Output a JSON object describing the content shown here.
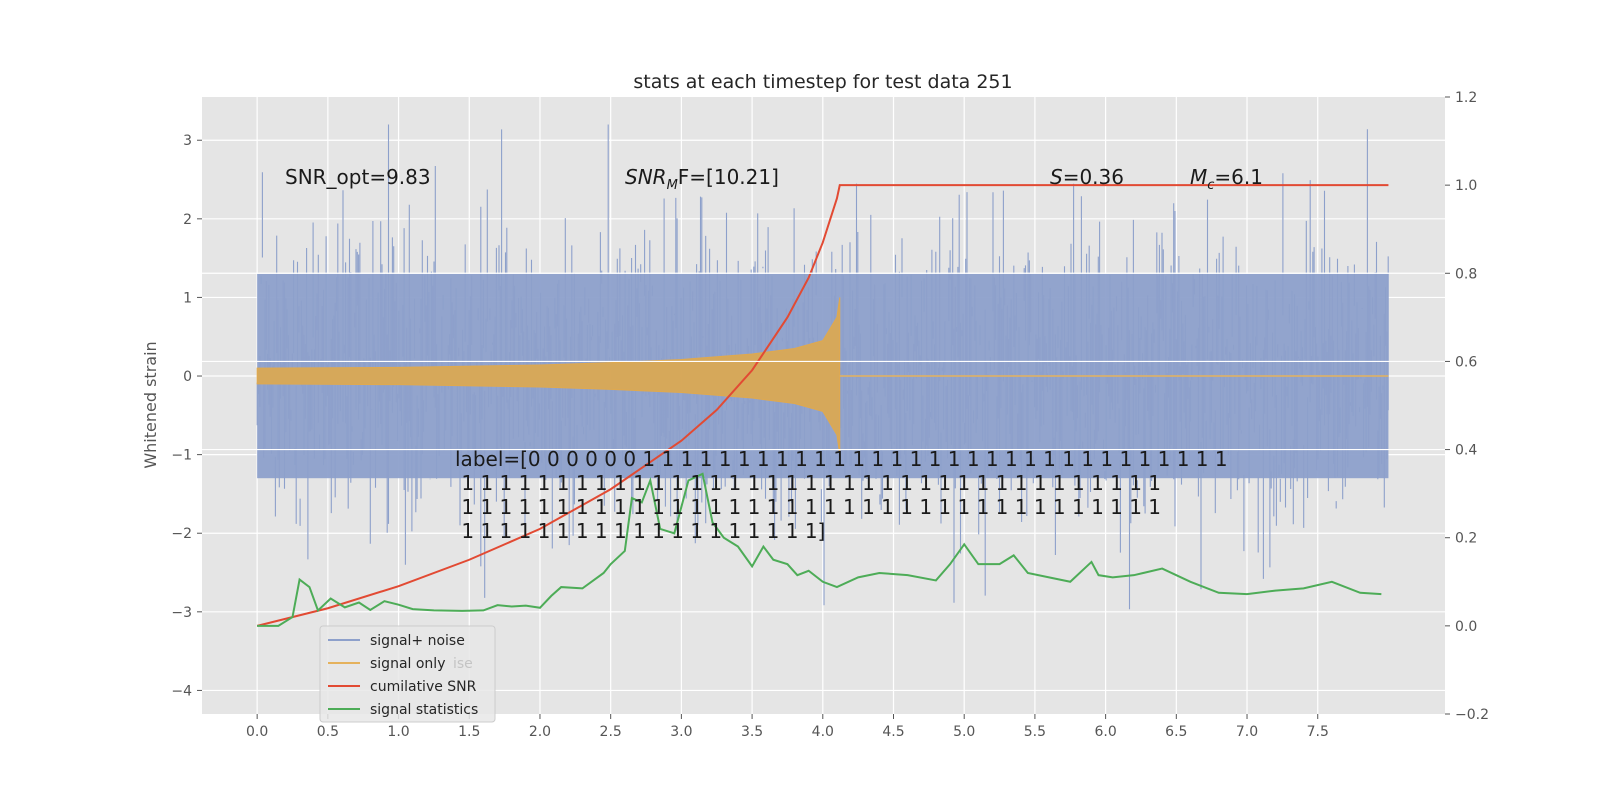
{
  "chart_data": {
    "type": "line",
    "title": "stats at each timestep for test data 251",
    "ylabel": "Whitened strain",
    "ylabel_right": "",
    "xlim": [
      -0.39,
      8.4
    ],
    "ylim": [
      -4.3,
      3.55
    ],
    "ylim_right": [
      -0.2,
      1.2
    ],
    "x_ticks": [
      0.0,
      0.5,
      1.0,
      1.5,
      2.0,
      2.5,
      3.0,
      3.5,
      4.0,
      4.5,
      5.0,
      5.5,
      6.0,
      6.5,
      7.0,
      7.5
    ],
    "x_tick_labels": [
      "0.0",
      "0.5",
      "1.0",
      "1.5",
      "2.0",
      "2.5",
      "3.0",
      "3.5",
      "4.0",
      "4.5",
      "5.0",
      "5.5",
      "6.0",
      "6.5",
      "7.0",
      "7.5"
    ],
    "y_ticks": [
      -4,
      -3,
      -2,
      -1,
      0,
      1,
      2,
      3
    ],
    "y_tick_labels": [
      "−4",
      "−3",
      "−2",
      "−1",
      "0",
      "1",
      "2",
      "3"
    ],
    "y_right_ticks": [
      -0.2,
      0.0,
      0.2,
      0.4,
      0.6,
      0.8,
      1.0,
      1.2
    ],
    "y_right_tick_labels": [
      "−0.2",
      "0.0",
      "0.2",
      "0.4",
      "0.6",
      "0.8",
      "1.0",
      "1.2"
    ],
    "grid": true,
    "legend_position": "lower-left",
    "series": [
      {
        "name": "signal+ noise",
        "axis": "left",
        "color": "#8da0cb",
        "style": "dense noise band",
        "x_range": [
          0,
          8.0
        ],
        "typical_band": [
          -1.3,
          1.3
        ],
        "extreme_band": [
          -3.4,
          3.2
        ]
      },
      {
        "name": "signal only",
        "axis": "left",
        "color": "#e5b25d",
        "style": "chirp envelope",
        "x_range": [
          0,
          4.12
        ],
        "envelope_x": [
          0.0,
          1.0,
          2.0,
          2.5,
          3.0,
          3.5,
          3.8,
          4.0,
          4.1,
          4.12
        ],
        "envelope_amp": [
          0.1,
          0.11,
          0.14,
          0.17,
          0.21,
          0.28,
          0.35,
          0.45,
          0.75,
          1.0
        ]
      },
      {
        "name": "cumilative SNR",
        "axis": "right",
        "color": "#e24a33",
        "x": [
          0.0,
          0.5,
          1.0,
          1.5,
          2.0,
          2.5,
          3.0,
          3.25,
          3.5,
          3.75,
          3.9,
          4.0,
          4.1,
          4.12,
          8.0
        ],
        "values": [
          0.0,
          0.04,
          0.09,
          0.15,
          0.22,
          0.31,
          0.42,
          0.49,
          0.58,
          0.7,
          0.79,
          0.87,
          0.97,
          1.0,
          1.0
        ]
      },
      {
        "name": "signal statistics",
        "axis": "right",
        "color": "#4dac57",
        "x": [
          0.0,
          0.15,
          0.25,
          0.3,
          0.37,
          0.43,
          0.52,
          0.62,
          0.72,
          0.8,
          0.9,
          1.0,
          1.1,
          1.25,
          1.45,
          1.6,
          1.7,
          1.8,
          1.9,
          2.0,
          2.08,
          2.15,
          2.3,
          2.45,
          2.5,
          2.6,
          2.65,
          2.72,
          2.78,
          2.85,
          2.95,
          3.05,
          3.15,
          3.22,
          3.3,
          3.4,
          3.5,
          3.58,
          3.65,
          3.75,
          3.82,
          3.9,
          4.0,
          4.1,
          4.25,
          4.4,
          4.6,
          4.8,
          4.9,
          5.0,
          5.1,
          5.25,
          5.35,
          5.45,
          5.6,
          5.75,
          5.9,
          5.95,
          6.05,
          6.2,
          6.4,
          6.6,
          6.8,
          7.0,
          7.2,
          7.4,
          7.6,
          7.8,
          7.95
        ],
        "values": [
          0.0,
          0.0,
          0.02,
          0.105,
          0.088,
          0.035,
          0.062,
          0.042,
          0.053,
          0.036,
          0.056,
          0.048,
          0.038,
          0.035,
          0.034,
          0.035,
          0.047,
          0.044,
          0.046,
          0.041,
          0.068,
          0.088,
          0.085,
          0.12,
          0.14,
          0.17,
          0.29,
          0.28,
          0.33,
          0.22,
          0.21,
          0.33,
          0.345,
          0.235,
          0.2,
          0.18,
          0.135,
          0.18,
          0.15,
          0.14,
          0.115,
          0.125,
          0.1,
          0.088,
          0.11,
          0.12,
          0.115,
          0.103,
          0.14,
          0.185,
          0.14,
          0.14,
          0.16,
          0.12,
          0.11,
          0.1,
          0.145,
          0.115,
          0.11,
          0.115,
          0.13,
          0.1,
          0.075,
          0.072,
          0.08,
          0.085,
          0.1,
          0.075,
          0.072
        ]
      }
    ],
    "annotations": {
      "snr_opt": "SNR_opt=9.83",
      "snr_mf_main": "SNR",
      "snr_mf_sub": "M",
      "snr_mf_rest": "F=[10.21]",
      "s_italic": "S",
      "s_value": "=0.36",
      "mc_italic": "M",
      "mc_sub": "c",
      "mc_value": "=6.1",
      "label_lines": [
        "label=[0 0 0 0 0 0 1 1 1 1 1 1 1 1 1 1 1 1 1 1 1 1 1 1 1 1 1 1 1 1 1 1 1 1 1 1 1",
        " 1 1 1 1 1 1 1 1 1 1 1 1 1 1 1 1 1 1 1 1 1 1 1 1 1 1 1 1 1 1 1 1 1 1 1 1 1",
        " 1 1 1 1 1 1 1 1 1 1 1 1 1 1 1 1 1 1 1 1 1 1 1 1 1 1 1 1 1 1 1 1 1 1 1 1 1",
        " 1 1 1 1 1 1 1 1 1 1 1 1 1 1 1 1 1 1 1]"
      ]
    },
    "legend_ghost_text": "ise"
  }
}
